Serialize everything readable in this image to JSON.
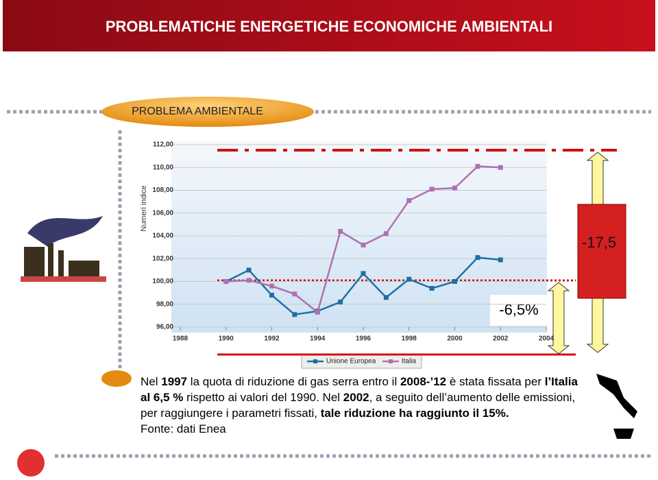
{
  "header": {
    "title": "PROBLEMATICHE ENERGETICHE ECONOMICHE AMBIENTALI"
  },
  "section": {
    "title": "PROBLEMA AMBIENTALE"
  },
  "chart_data": {
    "type": "line",
    "y_label": "Numeri indice",
    "x": [
      1990,
      1991,
      1992,
      1993,
      1994,
      1995,
      1996,
      1997,
      1998,
      1999,
      2000,
      2001,
      2002
    ],
    "series": [
      {
        "name": "Unione Europea",
        "color": "#1f6fa5",
        "values": [
          100,
          101,
          98.8,
          97.1,
          97.4,
          98.2,
          100.7,
          98.6,
          100.2,
          99.4,
          100,
          102.1,
          101.9
        ]
      },
      {
        "name": "Italia",
        "color": "#b070b0",
        "values": [
          100,
          100.1,
          99.6,
          98.9,
          97.3,
          104.4,
          103.2,
          104.2,
          107.1,
          108.1,
          108.2,
          110.1,
          110
        ]
      }
    ],
    "xlim": [
      1988,
      2004
    ],
    "xticks": [
      1988,
      1990,
      1992,
      1994,
      1996,
      1998,
      2000,
      2002,
      2004
    ],
    "ylim": [
      96,
      112
    ],
    "yticks": [
      {
        "value": 96,
        "label": "96,00"
      },
      {
        "value": 98,
        "label": "98,00"
      },
      {
        "value": 100,
        "label": "100,00"
      },
      {
        "value": 102,
        "label": "102,00"
      },
      {
        "value": 104,
        "label": "104,00"
      },
      {
        "value": 106,
        "label": "106,00"
      },
      {
        "value": 108,
        "label": "108,00"
      },
      {
        "value": 110,
        "label": "110,00"
      },
      {
        "value": 112,
        "label": "112,00"
      }
    ],
    "grid": true,
    "legend": "bottom"
  },
  "annotations": {
    "target": "-6,5%",
    "gap": "-17,5"
  },
  "paragraph": [
    [
      {
        "text": "Nel ",
        "bold": false
      },
      {
        "text": "1997",
        "bold": true
      },
      {
        "text": " la quota di riduzione di gas serra entro il ",
        "bold": false
      },
      {
        "text": "2008-’12",
        "bold": true
      },
      {
        "text": " è stata fissata per ",
        "bold": false
      },
      {
        "text": "l’Italia",
        "bold": true
      }
    ],
    [
      {
        "text": "al 6,5 %",
        "bold": true
      },
      {
        "text": " rispetto ai valori del 1990. Nel ",
        "bold": false
      },
      {
        "text": "2002",
        "bold": true
      },
      {
        "text": ", a seguito dell’aumento delle emissioni,",
        "bold": false
      }
    ],
    [
      {
        "text": "per raggiungere i parametri fissati, ",
        "bold": false
      },
      {
        "text": "tale riduzione ha raggiunto il 15%.",
        "bold": true
      }
    ],
    [
      {
        "text": "Fonte: dati Enea",
        "bold": false
      }
    ]
  ]
}
